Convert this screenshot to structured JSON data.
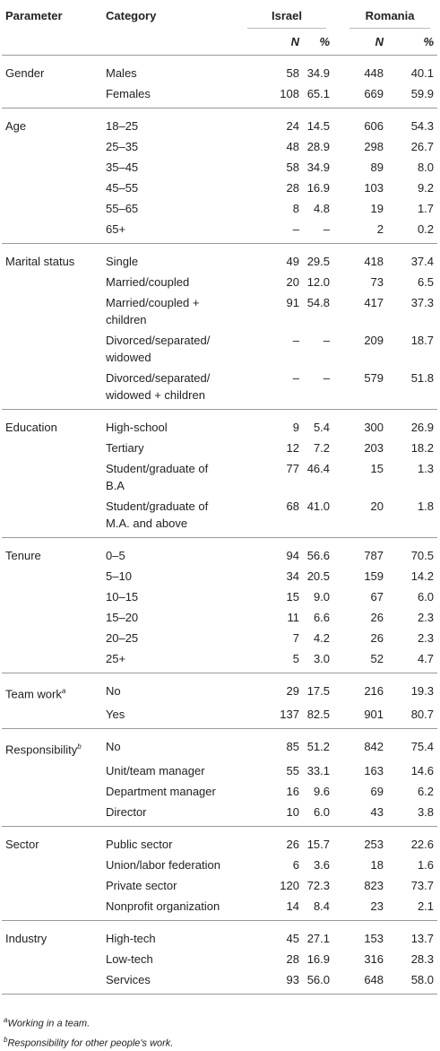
{
  "table": {
    "header": [
      "Parameter",
      "Category",
      "Israel",
      "Romania"
    ],
    "subheader": [
      "N",
      "%",
      "N",
      "%"
    ],
    "groups": [
      {
        "parameter": "Gender",
        "rows": [
          [
            "Males",
            "58",
            "34.9",
            "448",
            "40.1"
          ],
          [
            "Females",
            "108",
            "65.1",
            "669",
            "59.9"
          ]
        ]
      },
      {
        "parameter": "Age",
        "rows": [
          [
            "18–25",
            "24",
            "14.5",
            "606",
            "54.3"
          ],
          [
            "25–35",
            "48",
            "28.9",
            "298",
            "26.7"
          ],
          [
            "35–45",
            "58",
            "34.9",
            "89",
            "8.0"
          ],
          [
            "45–55",
            "28",
            "16.9",
            "103",
            "9.2"
          ],
          [
            "55–65",
            "8",
            "4.8",
            "19",
            "1.7"
          ],
          [
            "65+",
            "–",
            "–",
            "2",
            "0.2"
          ]
        ]
      },
      {
        "parameter": "Marital status",
        "rows": [
          [
            "Single",
            "49",
            "29.5",
            "418",
            "37.4"
          ],
          [
            "Married/coupled",
            "20",
            "12.0",
            "73",
            "6.5"
          ],
          [
            "Married/coupled + children",
            "91",
            "54.8",
            "417",
            "37.3"
          ],
          [
            "Divorced/separated/ widowed",
            "–",
            "–",
            "209",
            "18.7"
          ],
          [
            "Divorced/separated/ widowed + children",
            "–",
            "–",
            "579",
            "51.8"
          ]
        ]
      },
      {
        "parameter": "Education",
        "rows": [
          [
            "High-school",
            "9",
            "5.4",
            "300",
            "26.9"
          ],
          [
            "Tertiary",
            "12",
            "7.2",
            "203",
            "18.2"
          ],
          [
            "Student/graduate of B.A",
            "77",
            "46.4",
            "15",
            "1.3"
          ],
          [
            "Student/graduate of M.A. and above",
            "68",
            "41.0",
            "20",
            "1.8"
          ]
        ]
      },
      {
        "parameter": "Tenure",
        "rows": [
          [
            "0–5",
            "94",
            "56.6",
            "787",
            "70.5"
          ],
          [
            "5–10",
            "34",
            "20.5",
            "159",
            "14.2"
          ],
          [
            "10–15",
            "15",
            "9.0",
            "67",
            "6.0"
          ],
          [
            "15–20",
            "11",
            "6.6",
            "26",
            "2.3"
          ],
          [
            "20–25",
            "7",
            "4.2",
            "26",
            "2.3"
          ],
          [
            "25+",
            "5",
            "3.0",
            "52",
            "4.7"
          ]
        ]
      },
      {
        "parameter": "Team work",
        "mark": "a",
        "rows": [
          [
            "No",
            "29",
            "17.5",
            "216",
            "19.3"
          ],
          [
            "Yes",
            "137",
            "82.5",
            "901",
            "80.7"
          ]
        ]
      },
      {
        "parameter": "Responsibility",
        "mark": "b",
        "rows": [
          [
            "No",
            "85",
            "51.2",
            "842",
            "75.4"
          ],
          [
            "Unit/team manager",
            "55",
            "33.1",
            "163",
            "14.6"
          ],
          [
            "Department manager",
            "16",
            "9.6",
            "69",
            "6.2"
          ],
          [
            "Director",
            "10",
            "6.0",
            "43",
            "3.8"
          ]
        ]
      },
      {
        "parameter": "Sector",
        "rows": [
          [
            "Public sector",
            "26",
            "15.7",
            "253",
            "22.6"
          ],
          [
            "Union/labor federation",
            "6",
            "3.6",
            "18",
            "1.6"
          ],
          [
            "Private sector",
            "120",
            "72.3",
            "823",
            "73.7"
          ],
          [
            "Nonprofit organization",
            "14",
            "8.4",
            "23",
            "2.1"
          ]
        ]
      },
      {
        "parameter": "Industry",
        "rows": [
          [
            "High-tech",
            "45",
            "27.1",
            "153",
            "13.7"
          ],
          [
            "Low-tech",
            "28",
            "16.9",
            "316",
            "28.3"
          ],
          [
            "Services",
            "93",
            "56.0",
            "648",
            "58.0"
          ]
        ]
      }
    ]
  },
  "footnotes": [
    {
      "mark": "a",
      "text": "Working in a team."
    },
    {
      "mark": "b",
      "text": "Responsibility for other people's work."
    }
  ]
}
